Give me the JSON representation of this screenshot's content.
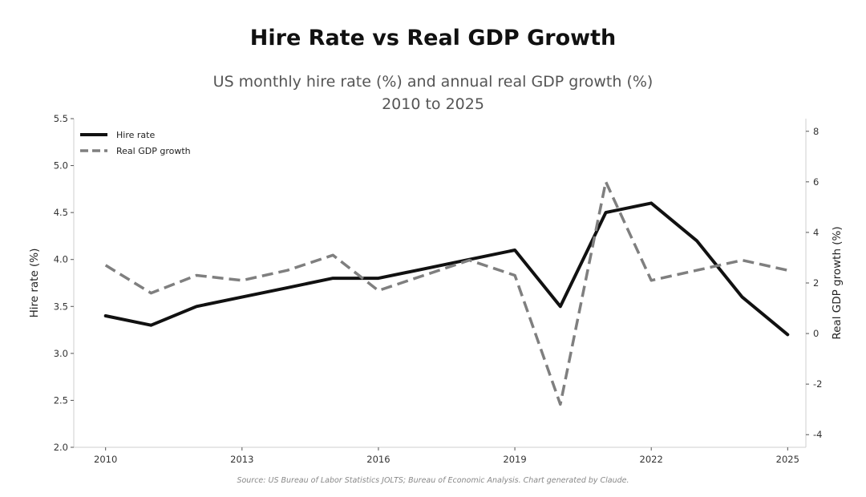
{
  "chart_data": {
    "type": "line",
    "title": "Hire Rate vs Real GDP Growth",
    "subtitle_lines": [
      "US monthly hire rate (%) and annual real GDP growth (%)",
      "2010 to 2025"
    ],
    "source": "Source: US Bureau of Labor Statistics JOLTS; Bureau of Economic Analysis. Chart generated by Claude.",
    "x": [
      2010,
      2011,
      2012,
      2013,
      2014,
      2015,
      2016,
      2017,
      2018,
      2019,
      2020,
      2021,
      2022,
      2023,
      2024,
      2025
    ],
    "x_ticks": [
      "2010",
      "2013",
      "2016",
      "2019",
      "2022",
      "2025"
    ],
    "x_tick_values": [
      2010,
      2013,
      2016,
      2019,
      2022,
      2025
    ],
    "xlim": [
      2009.3,
      2025.4
    ],
    "series": [
      {
        "name": "Hire rate",
        "axis": "left",
        "style": "solid",
        "color": "#111111",
        "values": [
          3.4,
          3.3,
          3.5,
          3.6,
          3.7,
          3.8,
          3.8,
          3.9,
          4.0,
          4.1,
          3.5,
          4.5,
          4.6,
          4.2,
          3.6,
          3.2
        ]
      },
      {
        "name": "Real GDP growth",
        "axis": "right",
        "style": "dashed",
        "color": "#7f7f7f",
        "values": [
          2.7,
          1.6,
          2.3,
          2.1,
          2.5,
          3.1,
          1.7,
          2.3,
          2.9,
          2.3,
          -2.8,
          6.0,
          2.1,
          2.5,
          2.9,
          2.5
        ]
      }
    ],
    "y_left": {
      "label": "Hire rate (%)",
      "ylim": [
        2.0,
        5.5
      ],
      "ticks": [
        "2.0",
        "2.5",
        "3.0",
        "3.5",
        "4.0",
        "4.5",
        "5.0",
        "5.5"
      ],
      "tick_values": [
        2.0,
        2.5,
        3.0,
        3.5,
        4.0,
        4.5,
        5.0,
        5.5
      ]
    },
    "y_right": {
      "label": "Real GDP growth (%)",
      "ylim": [
        -4.5,
        8.5
      ],
      "ticks": [
        "-4",
        "-2",
        "0",
        "2",
        "4",
        "6",
        "8"
      ],
      "tick_values": [
        -4,
        -2,
        0,
        2,
        4,
        6,
        8
      ]
    },
    "legend_placement": "top-left",
    "grid": false
  }
}
